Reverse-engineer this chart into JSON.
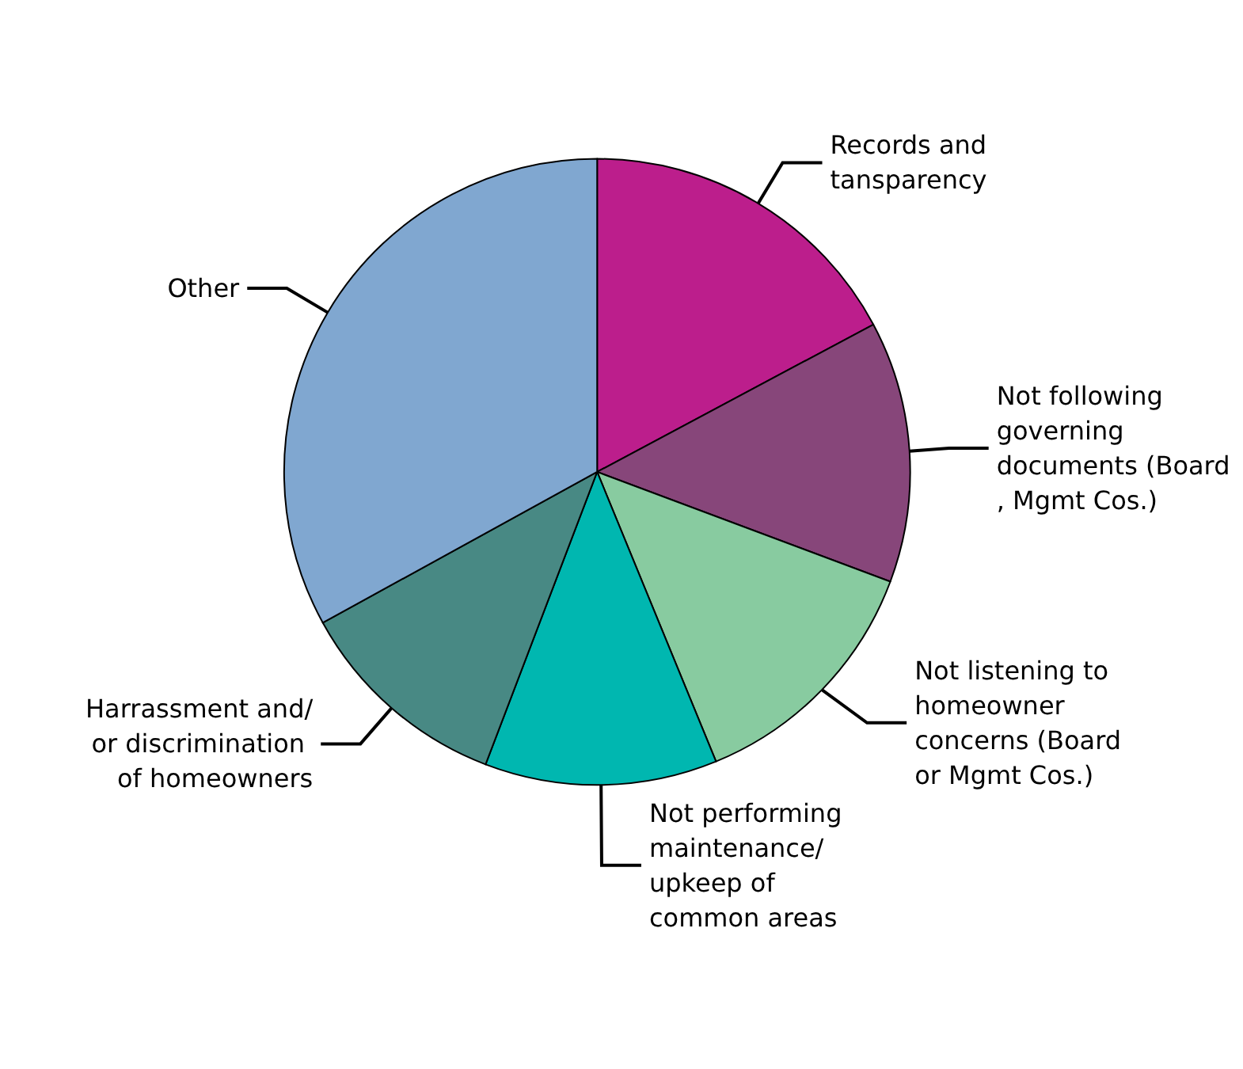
{
  "chart_data": {
    "type": "pie",
    "categories": [
      "Records and tansparency",
      "Not following governing documents (Board, Mgmt Cos.)",
      "Not listening to homeowner concerns (Board or Mgmt Cos.)",
      "Not performing maintenance/ upkeep of common areas",
      "Harrassment and/or discrimination of homeowners",
      "Other"
    ],
    "values": [
      17.2,
      13.5,
      13.1,
      12.0,
      11.2,
      33.0
    ],
    "colors": [
      "#bc1e8c",
      "#87467a",
      "#88cba0",
      "#00b7b0",
      "#488984",
      "#80a7d0"
    ]
  }
}
